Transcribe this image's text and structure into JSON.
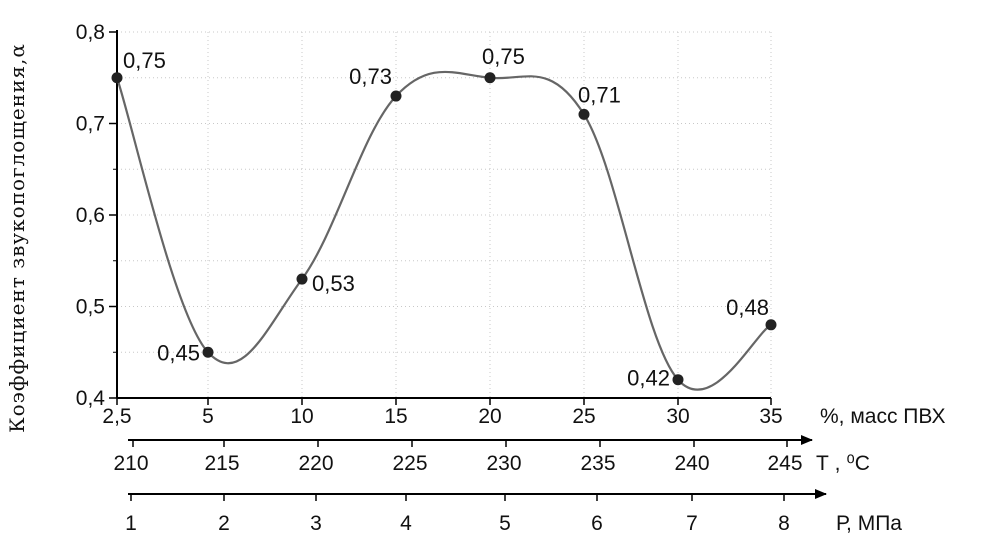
{
  "chart_data": {
    "type": "line",
    "ylabel": "Коэффициент звукопоглощения,α",
    "ylim": [
      0.4,
      0.8
    ],
    "yticks": [
      "0,4",
      "0,5",
      "0,6",
      "0,7",
      "0,8"
    ],
    "grid": true,
    "x_axes": [
      {
        "label": "%, масс ПВХ",
        "ticks": [
          "2,5",
          "5",
          "10",
          "15",
          "20",
          "25",
          "30",
          "35"
        ]
      },
      {
        "label": "Т , ⁰С",
        "ticks": [
          "210",
          "215",
          "220",
          "225",
          "230",
          "235",
          "240",
          "245"
        ]
      },
      {
        "label": "Р, МПа",
        "ticks": [
          "1",
          "2",
          "3",
          "4",
          "5",
          "6",
          "7",
          "8"
        ]
      }
    ],
    "series": [
      {
        "values": [
          0.75,
          0.45,
          0.53,
          0.73,
          0.75,
          0.71,
          0.42,
          0.48
        ],
        "data_labels": [
          "0,75",
          "0,45",
          "0,53",
          "0,73",
          "0,75",
          "0,71",
          "0,42",
          "0,48"
        ]
      }
    ]
  }
}
